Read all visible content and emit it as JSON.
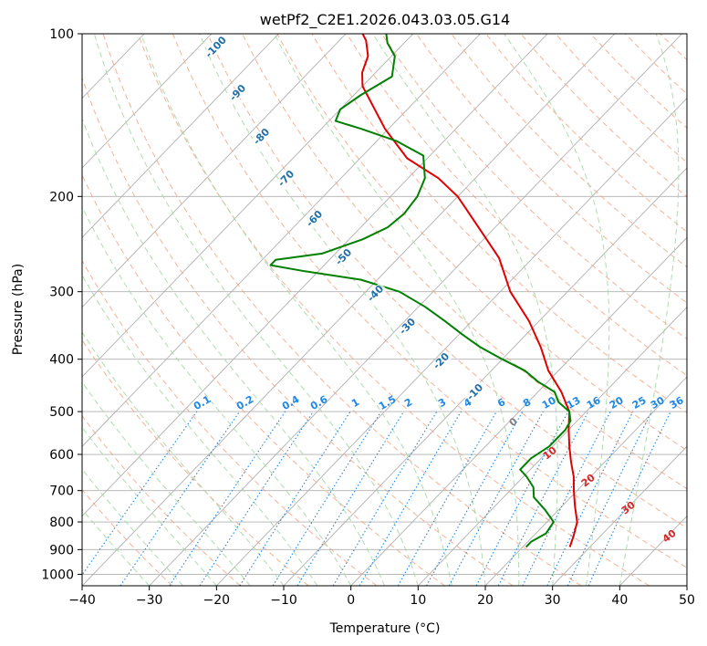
{
  "chart_data": {
    "type": "skew-t",
    "title": "wetPf2_C2E1.2026.043.03.05.G14",
    "xlabel": "Temperature (°C)",
    "ylabel": "Pressure (hPa)",
    "xlim": [
      -40,
      50
    ],
    "ylim": [
      1050,
      100
    ],
    "x_ticks": [
      -40,
      -30,
      -20,
      -10,
      0,
      10,
      20,
      30,
      40,
      50
    ],
    "y_ticks": [
      100,
      200,
      300,
      400,
      500,
      600,
      700,
      800,
      900,
      1000
    ],
    "grid": true,
    "colors": {
      "temperature": "#e00000",
      "dewpoint": "#008000",
      "isotherm_label": "#1f6fa8",
      "mixing_ratio": "#1e88e5",
      "dry_adiabat": "#f4a582",
      "moist_adiabat": "#a6d8a6",
      "isotherm": "#b0b0b0",
      "dry_label": "#d62728",
      "zero_label": "#808080"
    },
    "isotherm_labels": [
      "-100",
      "-90",
      "-80",
      "-70",
      "-60",
      "-50",
      "-40",
      "-30",
      "-20",
      "-10"
    ],
    "isotherm_label_values": [
      -100,
      -90,
      -80,
      -70,
      -60,
      -50,
      -40,
      -30,
      -20,
      -10
    ],
    "mixing_ratio_labels": [
      "0.1",
      "0.2",
      "0.4",
      "0.6",
      "1",
      "1.5",
      "2",
      "3",
      "4",
      "6",
      "8",
      "10",
      "13",
      "16",
      "20",
      "25",
      "30",
      "36"
    ],
    "mixing_ratio_values": [
      0.1,
      0.2,
      0.4,
      0.6,
      1,
      1.5,
      2,
      3,
      4,
      6,
      8,
      10,
      13,
      16,
      20,
      25,
      30,
      36
    ],
    "dry_labels": [
      "0",
      "10",
      "20",
      "30",
      "40"
    ],
    "series": [
      {
        "name": "temperature",
        "values": [
          [
            890,
            27.0
          ],
          [
            850,
            26.0
          ],
          [
            800,
            24.5
          ],
          [
            750,
            22.0
          ],
          [
            700,
            19.5
          ],
          [
            660,
            17.5
          ],
          [
            620,
            15.0
          ],
          [
            580,
            12.5
          ],
          [
            540,
            10.0
          ],
          [
            500,
            7.5
          ],
          [
            460,
            3.5
          ],
          [
            420,
            -1.5
          ],
          [
            380,
            -6.0
          ],
          [
            340,
            -11.5
          ],
          [
            300,
            -18.5
          ],
          [
            260,
            -25.0
          ],
          [
            230,
            -32.0
          ],
          [
            200,
            -40.0
          ],
          [
            185,
            -45.5
          ],
          [
            170,
            -53.0
          ],
          [
            150,
            -60.5
          ],
          [
            135,
            -66.0
          ],
          [
            125,
            -70.0
          ],
          [
            118,
            -72.0
          ],
          [
            110,
            -73.5
          ],
          [
            103,
            -76.0
          ],
          [
            100,
            -77.5
          ]
        ]
      },
      {
        "name": "dewpoint",
        "values": [
          [
            890,
            20.5
          ],
          [
            870,
            20.5
          ],
          [
            840,
            21.5
          ],
          [
            800,
            21.0
          ],
          [
            760,
            18.0
          ],
          [
            720,
            14.5
          ],
          [
            690,
            13.0
          ],
          [
            660,
            10.5
          ],
          [
            640,
            8.5
          ],
          [
            610,
            8.5
          ],
          [
            580,
            9.5
          ],
          [
            560,
            9.5
          ],
          [
            540,
            9.5
          ],
          [
            520,
            9.0
          ],
          [
            500,
            7.5
          ],
          [
            480,
            4.5
          ],
          [
            460,
            2.5
          ],
          [
            440,
            -1.5
          ],
          [
            420,
            -5.0
          ],
          [
            400,
            -10.0
          ],
          [
            380,
            -15.0
          ],
          [
            360,
            -19.5
          ],
          [
            340,
            -24.0
          ],
          [
            320,
            -29.0
          ],
          [
            300,
            -35.0
          ],
          [
            285,
            -42.5
          ],
          [
            275,
            -52.0
          ],
          [
            268,
            -58.0
          ],
          [
            262,
            -58.0
          ],
          [
            255,
            -52.0
          ],
          [
            240,
            -48.0
          ],
          [
            228,
            -46.0
          ],
          [
            215,
            -45.5
          ],
          [
            200,
            -46.0
          ],
          [
            185,
            -47.5
          ],
          [
            168,
            -51.0
          ],
          [
            158,
            -57.0
          ],
          [
            150,
            -64.0
          ],
          [
            145,
            -69.0
          ],
          [
            138,
            -70.0
          ],
          [
            130,
            -69.0
          ],
          [
            120,
            -67.0
          ],
          [
            110,
            -69.5
          ],
          [
            104,
            -72.5
          ],
          [
            100,
            -74.0
          ]
        ]
      }
    ]
  }
}
